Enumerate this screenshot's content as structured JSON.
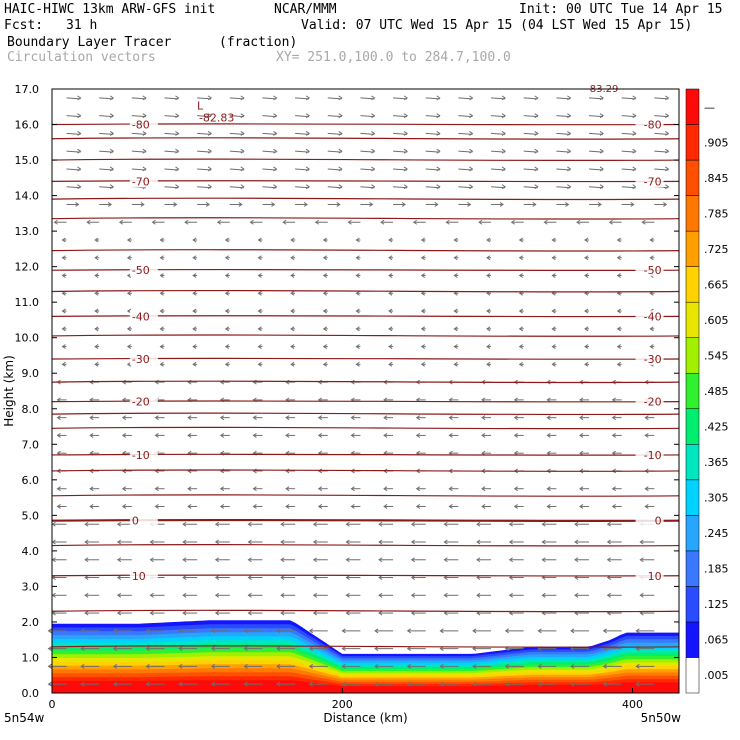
{
  "header": {
    "model": "HAIC-HIWC 13km ARW-GFS init",
    "org": "NCAR/MMM",
    "init": "Init: 00 UTC Tue 14 Apr 15",
    "fcst_label": "Fcst:",
    "fcst_value": "31 h",
    "valid": "Valid: 07 UTC Wed 15 Apr 15 (04 LST Wed 15 Apr 15)",
    "field": "Boundary Layer Tracer",
    "field_units": "(fraction)",
    "overlay": "Circulation vectors",
    "xy": "XY= 251.0,100.0 to 284.7,100.0"
  },
  "colors": {
    "contour": "#8b1a1a",
    "vector": "#6e6e6e",
    "frame": "#000000"
  },
  "colorbar": {
    "labels": [
      ".005",
      ".065",
      ".125",
      ".185",
      ".245",
      ".305",
      ".365",
      ".425",
      ".485",
      ".545",
      ".605",
      ".665",
      ".725",
      ".785",
      ".845",
      ".905",
      "—"
    ],
    "colors": [
      "#ffffff",
      "#1414ff",
      "#2a4cff",
      "#3a78ff",
      "#26a6ff",
      "#00d2ff",
      "#00e6c0",
      "#00ee70",
      "#30f030",
      "#a0f000",
      "#e6e600",
      "#ffd200",
      "#ffa000",
      "#ff7800",
      "#ff5000",
      "#ff2800",
      "#ff0a0a"
    ]
  },
  "chart_data": {
    "type": "contour-cross-section",
    "ylabel": "Height (km)",
    "xlabel": "Distance (km)",
    "ylim": [
      0,
      17
    ],
    "xlim": [
      0,
      432
    ],
    "y_ticks": [
      "0.0",
      "1.0",
      "2.0",
      "3.0",
      "4.0",
      "5.0",
      "6.0",
      "7.0",
      "8.0",
      "9.0",
      "10.0",
      "11.0",
      "12.0",
      "13.0",
      "14.0",
      "15.0",
      "16.0",
      "17.0"
    ],
    "x_ticks": [
      "0",
      "200",
      "400"
    ],
    "x_tick_values": [
      0,
      200,
      400
    ],
    "end_labels": [
      "5n54w",
      "5n50w"
    ],
    "temperature_contours_C": [
      {
        "label": "-80",
        "height_km": 16.0
      },
      {
        "label": "-70",
        "height_km": 14.4
      },
      {
        "label": "-50",
        "height_km": 11.9
      },
      {
        "label": "-40",
        "height_km": 10.6
      },
      {
        "label": "-30",
        "height_km": 9.4
      },
      {
        "label": "-20",
        "height_km": 8.2
      },
      {
        "label": "-10",
        "height_km": 6.7
      },
      {
        "label": "0",
        "height_km": 4.85
      },
      {
        "label": "10",
        "height_km": 3.3
      }
    ],
    "min_marker": {
      "symbol": "L",
      "value": "-82.83",
      "x_km": 104,
      "height_km": 16.4
    },
    "top_clipped_label": "-83.29",
    "tracer_top_km": {
      "x_km": [
        0,
        60,
        110,
        165,
        200,
        260,
        290,
        330,
        370,
        385,
        395,
        432
      ],
      "height_km": [
        1.95,
        1.95,
        2.05,
        2.05,
        1.1,
        1.1,
        1.1,
        1.3,
        1.3,
        1.5,
        1.7,
        1.7
      ]
    }
  }
}
